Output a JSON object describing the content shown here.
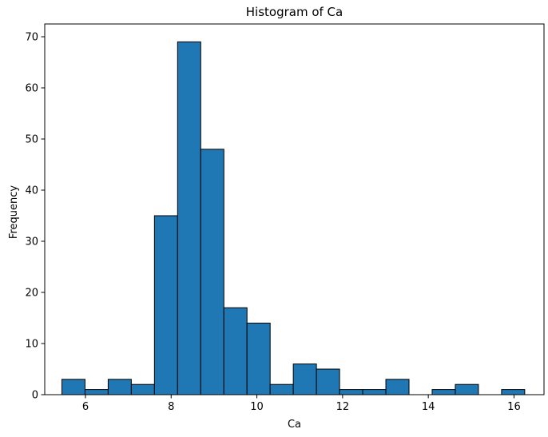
{
  "chart_data": {
    "type": "bar",
    "subtype": "histogram",
    "title": "Histogram of Ca",
    "xlabel": "Ca",
    "ylabel": "Frequency",
    "xlim": [
      5.05,
      16.7
    ],
    "ylim": [
      0,
      72.5
    ],
    "xticks": [
      6,
      8,
      10,
      12,
      14,
      16
    ],
    "yticks": [
      0,
      10,
      20,
      30,
      40,
      50,
      60,
      70
    ],
    "bin_start": 5.45,
    "bin_width": 0.54,
    "values": [
      3,
      1,
      3,
      2,
      35,
      69,
      48,
      17,
      14,
      2,
      6,
      5,
      1,
      1,
      3,
      0,
      1,
      2,
      0,
      1
    ],
    "bar_color": "#1f77b4",
    "edge_color": "#000000",
    "grid": false,
    "legend": "none"
  }
}
